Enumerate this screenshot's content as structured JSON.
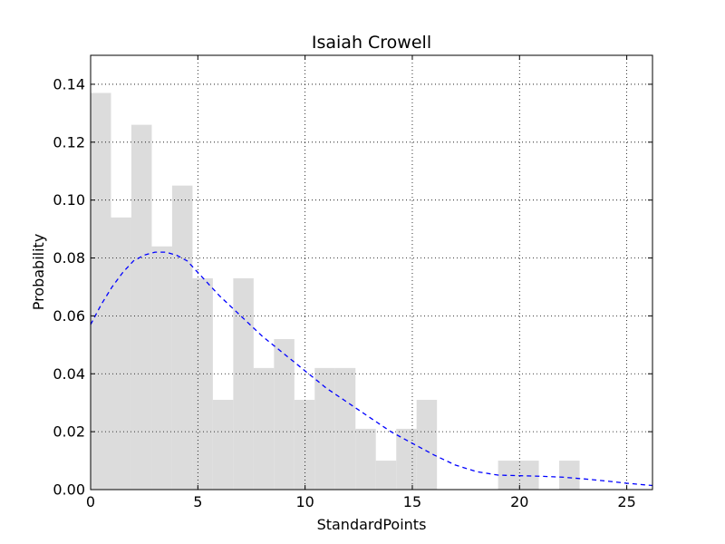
{
  "chart_data": {
    "type": "bar",
    "title": "Isaiah Crowell",
    "xlabel": "StandardPoints",
    "ylabel": "Probability",
    "xlim": [
      0,
      26.2
    ],
    "ylim": [
      0,
      0.15
    ],
    "grid": true,
    "xticks": [
      0,
      5,
      10,
      15,
      20,
      25
    ],
    "yticks": [
      0.0,
      0.02,
      0.04,
      0.06,
      0.08,
      0.1,
      0.12,
      0.14
    ],
    "histogram": {
      "bin_edges": [
        0,
        0.95,
        1.9,
        2.85,
        3.8,
        4.75,
        5.7,
        6.65,
        7.6,
        8.55,
        9.5,
        10.45,
        11.4,
        12.35,
        13.3,
        14.25,
        15.2,
        16.15,
        17.1,
        18.05,
        19.0,
        19.95,
        20.9,
        21.85,
        22.8,
        23.75
      ],
      "values": [
        0.137,
        0.094,
        0.126,
        0.084,
        0.105,
        0.073,
        0.031,
        0.073,
        0.042,
        0.052,
        0.031,
        0.042,
        0.042,
        0.021,
        0.01,
        0.021,
        0.031,
        0,
        0,
        0,
        0.01,
        0.01,
        0,
        0.01,
        0
      ]
    },
    "fit_curve": {
      "style": "dashed",
      "color": "#0000ff",
      "x": [
        0,
        0.5,
        1,
        1.5,
        2,
        2.5,
        3,
        3.5,
        4,
        4.5,
        5,
        6,
        7,
        8,
        9,
        10,
        11,
        12,
        13,
        14,
        15,
        16,
        17,
        18,
        19,
        20,
        21,
        22,
        23,
        24,
        25,
        26.2
      ],
      "y": [
        0.057,
        0.064,
        0.07,
        0.075,
        0.079,
        0.081,
        0.082,
        0.082,
        0.081,
        0.079,
        0.075,
        0.067,
        0.06,
        0.053,
        0.047,
        0.041,
        0.035,
        0.03,
        0.025,
        0.02,
        0.016,
        0.012,
        0.0085,
        0.0062,
        0.005,
        0.0048,
        0.0046,
        0.0043,
        0.0037,
        0.003,
        0.0022,
        0.0014
      ]
    }
  }
}
